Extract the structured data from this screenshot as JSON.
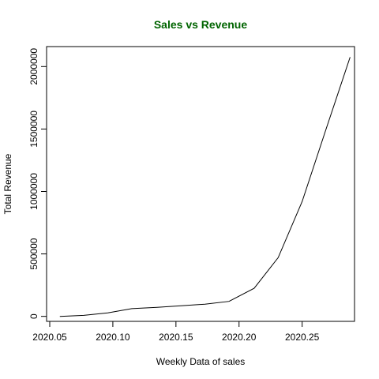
{
  "chart_data": {
    "type": "line",
    "title": "Sales vs Revenue",
    "title_color": "#006400",
    "xlabel": "Weekly Data of sales",
    "ylabel": "Total Revenue",
    "xlim": [
      2020.0475,
      2020.2915
    ],
    "ylim": [
      -40000,
      2160000
    ],
    "x_ticks": [
      2020.05,
      2020.1,
      2020.15,
      2020.2,
      2020.25
    ],
    "x_tick_labels": [
      "2020.05",
      "2020.10",
      "2020.15",
      "2020.20",
      "2020.25"
    ],
    "y_ticks": [
      0,
      500000,
      1000000,
      1500000,
      2000000
    ],
    "y_tick_labels": [
      "0",
      "500000",
      "1000000",
      "1500000",
      "2000000"
    ],
    "grid": false,
    "line_color": "#000000",
    "series": [
      {
        "x": [
          2020.058,
          2020.077,
          2020.096,
          2020.115,
          2020.135,
          2020.154,
          2020.173,
          2020.192,
          2020.212,
          2020.231,
          2020.25,
          2020.269,
          2020.288
        ],
        "values": [
          0,
          8000,
          28000,
          62000,
          72000,
          85000,
          98000,
          120000,
          225000,
          470000,
          920000,
          1500000,
          2075000
        ]
      }
    ]
  }
}
